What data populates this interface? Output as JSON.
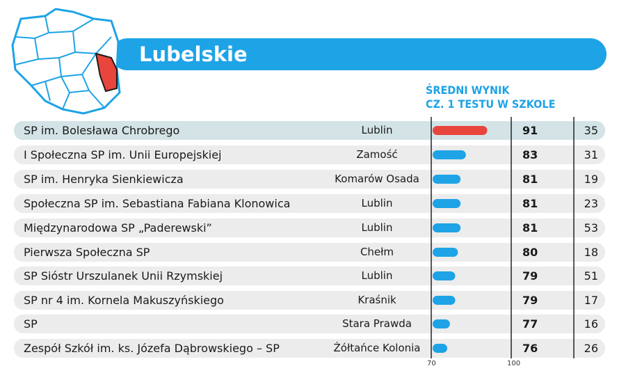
{
  "title": "Lubelskie",
  "subtitle_lines": [
    "ŚREDNI WYNIK",
    "CZ. 1 TESTU W SZKOLE"
  ],
  "colors": {
    "accent": "#1ea3e6",
    "highlight": "#e8453c",
    "row_alt": "#ececec",
    "row_highlight": "#d3e3e6"
  },
  "chart_data": {
    "type": "bar",
    "orientation": "horizontal",
    "categories": [
      "SP im. Bolesława Chrobrego",
      "I Społeczna SP im. Unii Europejskiej",
      "SP im. Henryka Sienkiewicza",
      "Społeczna SP im. Sebastiana Fabiana Klonowica",
      "Międzynarodowa SP „Paderewski”",
      "Pierwsza Społeczna SP",
      "SP Sióstr Urszulanek Unii Rzymskiej",
      "SP nr 4 im. Kornela Makuszyńskiego",
      "SP",
      "Zespół Szkół im. ks. Józefa Dąbrowskiego – SP"
    ],
    "towns": [
      "Lublin",
      "Zamość",
      "Komarów Osada",
      "Lublin",
      "Lublin",
      "Chełm",
      "Lublin",
      "Kraśnik",
      "Stara Prawda",
      "Żółtańce Kolonia"
    ],
    "values": [
      91,
      83,
      81,
      81,
      81,
      80,
      79,
      79,
      77,
      76
    ],
    "counts": [
      35,
      31,
      19,
      23,
      53,
      18,
      51,
      17,
      16,
      26
    ],
    "xlim": [
      70,
      100
    ],
    "ticks": [
      "70",
      "100"
    ],
    "highlight_index": 0
  }
}
